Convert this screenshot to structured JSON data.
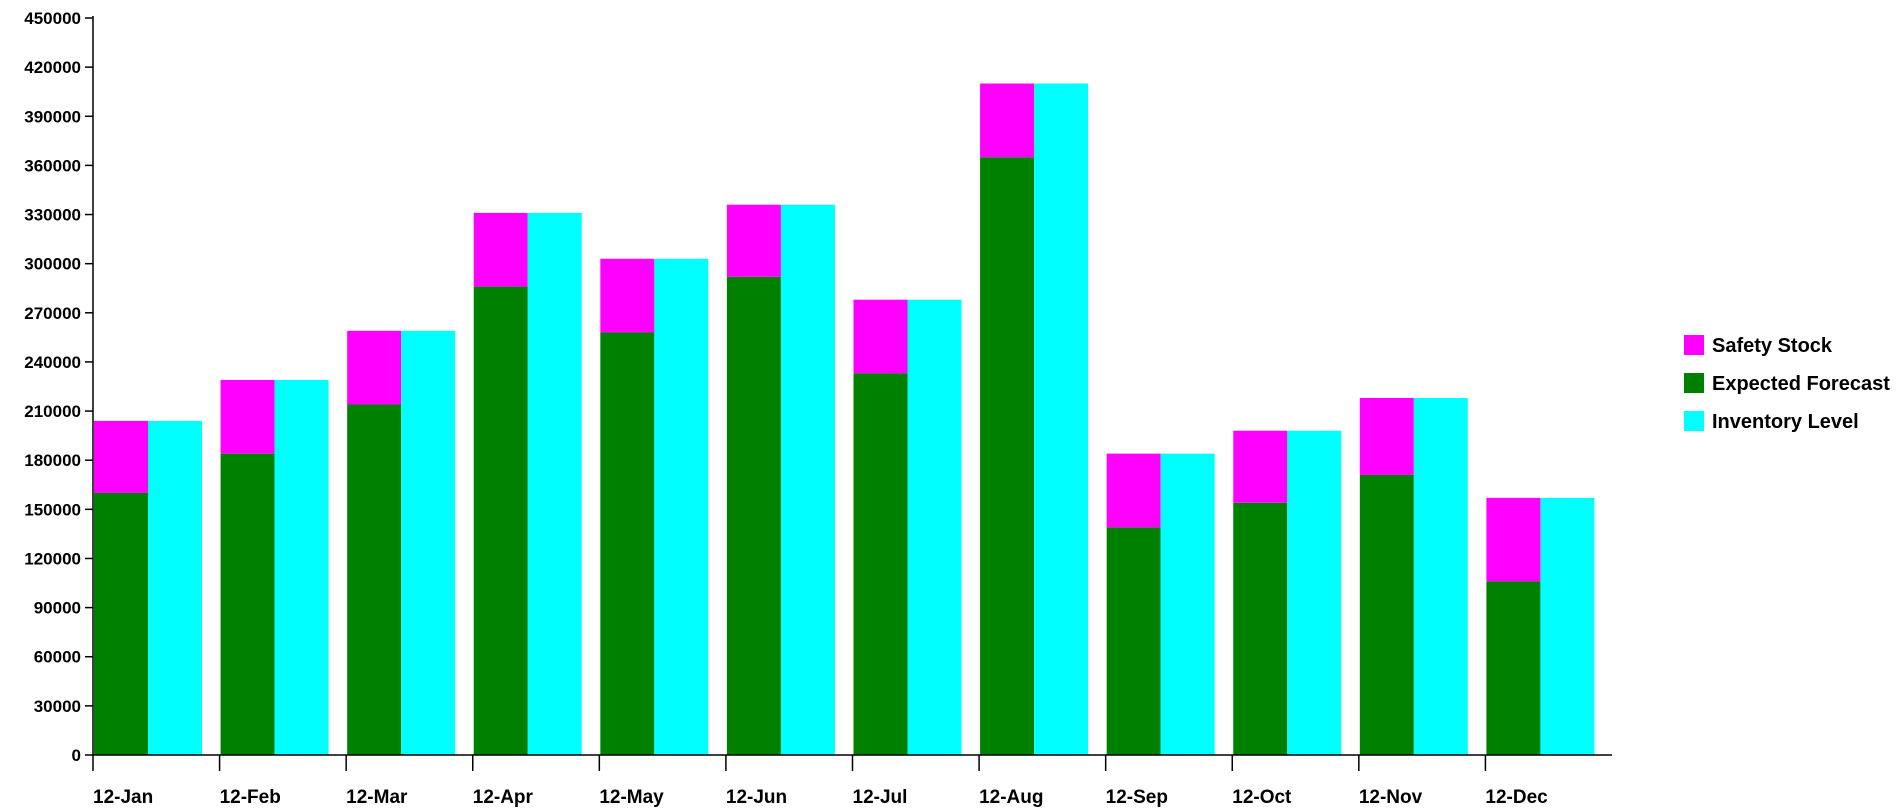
{
  "chart_data": {
    "type": "bar",
    "title": "",
    "xlabel": "",
    "ylabel": "",
    "ylim": [
      0,
      450000
    ],
    "yticks": [
      0,
      30000,
      60000,
      90000,
      120000,
      150000,
      180000,
      210000,
      240000,
      270000,
      300000,
      330000,
      360000,
      390000,
      420000,
      450000
    ],
    "categories": [
      "12-Jan",
      "12-Feb",
      "12-Mar",
      "12-Apr",
      "12-May",
      "12-Jun",
      "12-Jul",
      "12-Aug",
      "12-Sep",
      "12-Oct",
      "12-Nov",
      "12-Dec"
    ],
    "stacked_group": [
      "Expected Forecast",
      "Safety Stock"
    ],
    "series": [
      {
        "name": "Expected Forecast",
        "color": "#008000",
        "values": [
          160000,
          184000,
          214000,
          286000,
          258000,
          292000,
          233000,
          365000,
          139000,
          154000,
          171000,
          106000
        ]
      },
      {
        "name": "Safety Stock",
        "color": "#FF00FF",
        "values": [
          44000,
          45000,
          45000,
          45000,
          45000,
          44000,
          45000,
          45000,
          45000,
          44000,
          47000,
          51000
        ]
      },
      {
        "name": "Inventory Level",
        "color": "#00FFFF",
        "values": [
          204000,
          229000,
          259000,
          331000,
          303000,
          336000,
          278000,
          410000,
          184000,
          198000,
          218000,
          157000
        ]
      }
    ],
    "legend": {
      "position": "right",
      "entries": [
        "Safety Stock",
        "Expected Forecast",
        "Inventory Level"
      ]
    },
    "grid": false
  }
}
